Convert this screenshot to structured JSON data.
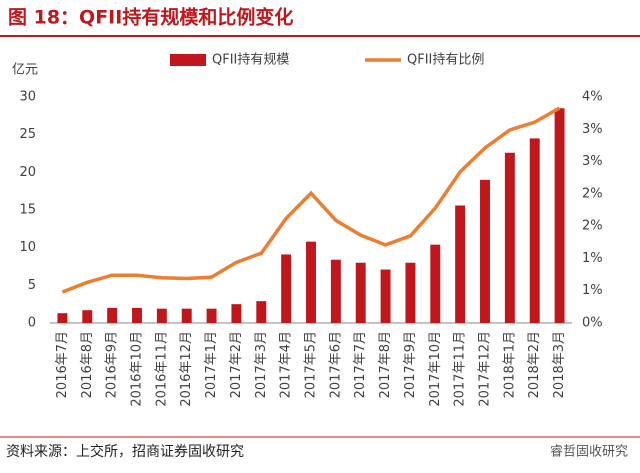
{
  "chart_data": {
    "type": "bar_line",
    "title": "图 18：QFII持有规模和比例变化",
    "y_label": "亿元",
    "source": "资料来源：上交所，招商证券固收研究",
    "watermark": "睿哲固收研究",
    "categories": [
      "2016年7月",
      "2016年8月",
      "2016年9月",
      "2016年10月",
      "2016年11月",
      "2016年12月",
      "2017年1月",
      "2017年2月",
      "2017年3月",
      "2017年4月",
      "2017年5月",
      "2017年6月",
      "2017年7月",
      "2017年8月",
      "2017年9月",
      "2017年10月",
      "2017年11月",
      "2017年12月",
      "2018年1月",
      "2018年2月",
      "2018年3月"
    ],
    "series": [
      {
        "name": "QFII持有规模",
        "color": "#c0171d",
        "type": "bar",
        "values": [
          1.3,
          1.7,
          2.0,
          2.0,
          1.9,
          1.9,
          1.9,
          2.5,
          2.9,
          9.1,
          10.8,
          8.4,
          8.0,
          7.1,
          8.0,
          10.4,
          15.6,
          19.0,
          22.6,
          24.5,
          28.5
        ]
      },
      {
        "name": "QFII持有比例",
        "color": "#ed7d31",
        "type": "line",
        "axis": "y2",
        "values": [
          0.48,
          0.63,
          0.74,
          0.74,
          0.7,
          0.69,
          0.71,
          0.94,
          1.08,
          1.62,
          2.01,
          1.59,
          1.36,
          1.21,
          1.35,
          1.78,
          2.34,
          2.71,
          2.99,
          3.11,
          3.33
        ]
      }
    ],
    "ylim": [
      0,
      30
    ],
    "yticks": [
      0,
      5,
      10,
      15,
      20,
      25,
      30
    ],
    "y2lim": [
      0,
      3.5
    ],
    "y2ticks": [
      {
        "value": 0,
        "label": "0%"
      },
      {
        "value": 0.5,
        "label": "1%"
      },
      {
        "value": 1,
        "label": "1%"
      },
      {
        "value": 1.5,
        "label": "2%"
      },
      {
        "value": 2,
        "label": "2%"
      },
      {
        "value": 2.5,
        "label": "3%"
      },
      {
        "value": 3,
        "label": "3%"
      },
      {
        "value": 3.5,
        "label": "4%"
      }
    ],
    "legend": "top"
  }
}
